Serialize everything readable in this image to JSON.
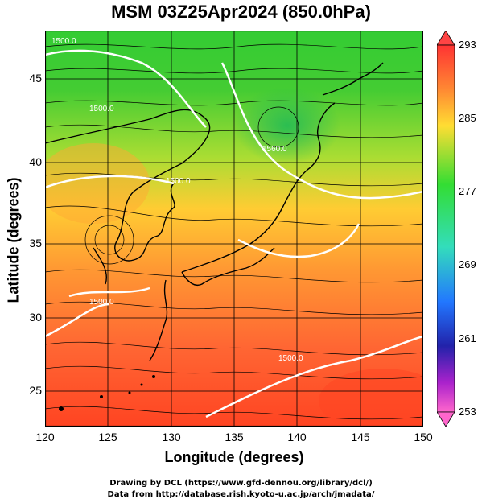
{
  "title": "MSM 03Z25Apr2024 (850.0hPa)",
  "xlabel": "Longitude (degrees)",
  "ylabel": "Latitude  (degrees)",
  "x_ticks": [
    "120",
    "125",
    "130",
    "135",
    "140",
    "145",
    "150"
  ],
  "y_ticks": [
    "25",
    "30",
    "35",
    "40",
    "45"
  ],
  "colorbar": {
    "labels": [
      "293",
      "285",
      "277",
      "269",
      "261",
      "253"
    ],
    "colors": [
      "#ff3333",
      "#ff8833",
      "#ffdd33",
      "#33dd33",
      "#33ddbb",
      "#2277ff",
      "#2222aa",
      "#aa22cc",
      "#ff66cc"
    ]
  },
  "contour_labels": [
    "1500.0",
    "1560.0",
    "1500.0",
    "1500.0",
    "1500.0",
    "1500.0"
  ],
  "credits": {
    "line1": "Drawing by DCL (https://www.gfd-dennou.org/library/dcl/)",
    "line2": "Data from http://database.rish.kyoto-u.ac.jp/arch/jmadata/"
  }
}
